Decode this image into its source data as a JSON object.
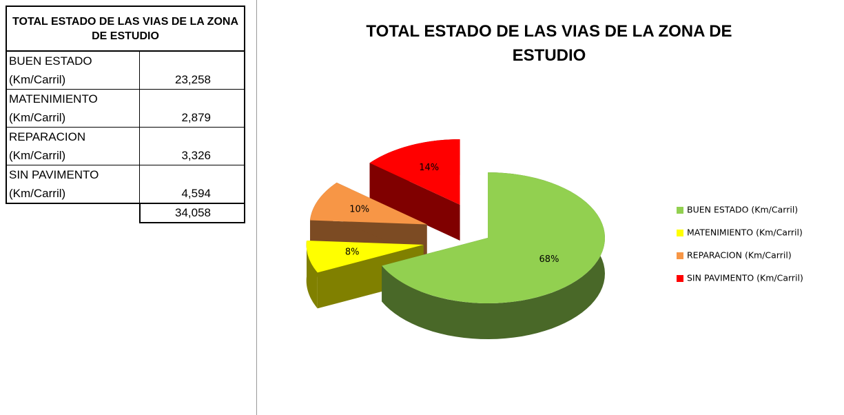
{
  "table": {
    "title": "TOTAL ESTADO DE LAS VIAS DE LA ZONA DE ESTUDIO",
    "rows": [
      {
        "label": [
          "BUEN ESTADO",
          "(Km/Carril)"
        ],
        "value": "23,258"
      },
      {
        "label": [
          "MATENIMIENTO",
          "(Km/Carril)"
        ],
        "value": "2,879"
      },
      {
        "label": [
          "REPARACION",
          "(Km/Carril)"
        ],
        "value": "3,326"
      },
      {
        "label": [
          "SIN PAVIMENTO",
          "(Km/Carril)"
        ],
        "value": "4,594"
      }
    ],
    "total": "34,058"
  },
  "chart_data": {
    "type": "pie",
    "title": "TOTAL ESTADO DE LAS VIAS DE LA ZONA DE ESTUDIO",
    "categories": [
      "BUEN ESTADO (Km/Carril)",
      "MATENIMIENTO (Km/Carril)",
      "REPARACION (Km/Carril)",
      "SIN PAVIMENTO (Km/Carril)"
    ],
    "values": [
      68,
      8,
      10,
      14
    ],
    "value_labels": [
      "68%",
      "8%",
      "10%",
      "14%"
    ],
    "colors": [
      "#92d050",
      "#ffff00",
      "#f79646",
      "#ff0000"
    ],
    "legend": "right"
  }
}
